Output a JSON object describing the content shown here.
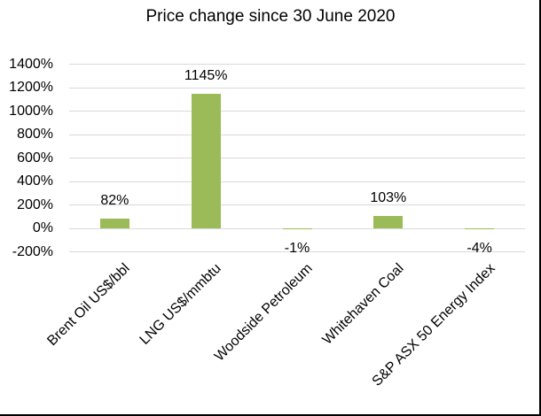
{
  "title": "Price change since 30 June 2020",
  "chart_data": {
    "type": "bar",
    "title": "Price change since 30 June 2020",
    "categories": [
      "Brent Oil US$/bbl",
      "LNG US$/mmbtu",
      "Woodside Petroleum",
      "Whitehaven Coal",
      "S&P ASX 50 Energy Index"
    ],
    "values": [
      82,
      1145,
      -1,
      103,
      -4
    ],
    "data_labels": [
      "82%",
      "1145%",
      "-1%",
      "103%",
      "-4%"
    ],
    "xlabel": "",
    "ylabel": "",
    "ylim": [
      -200,
      1400
    ],
    "ytick_step": 200,
    "ytick_labels": [
      "1400%",
      "1200%",
      "1000%",
      "800%",
      "600%",
      "400%",
      "200%",
      "0%",
      "-200%"
    ],
    "grid": true,
    "legend": false,
    "bar_color": "#9BBB59",
    "gridline_color": "#D9D9D9",
    "text_color": "#000000"
  }
}
